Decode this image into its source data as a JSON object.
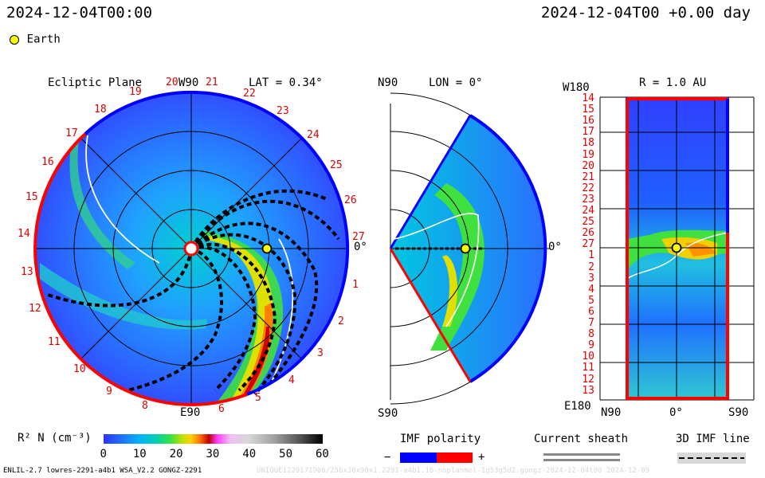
{
  "header": {
    "left_time": "2024-12-04T00:00",
    "right_time": "2024-12-04T00 +0.00 day"
  },
  "legend": {
    "earth": "Earth"
  },
  "panels": {
    "ecliptic": {
      "title": "Ecliptic Plane",
      "top_label": "W90",
      "lat": "LAT = 0.34°",
      "bottom_label": "E90",
      "right_label": "0°",
      "day_labels": [
        "1",
        "2",
        "3",
        "4",
        "5",
        "6",
        "8",
        "9",
        "10",
        "11",
        "12",
        "13",
        "14",
        "15",
        "16",
        "17",
        "18",
        "19",
        "20",
        "21",
        "22",
        "23",
        "24",
        "25",
        "26",
        "27"
      ]
    },
    "meridional": {
      "top_left": "N90",
      "title": "LON = 0°",
      "bottom_left": "S90",
      "right_label": "0°"
    },
    "map": {
      "title": "R = 1.0 AU",
      "top_left": "W180",
      "bottom_left": "E180",
      "x_labels": [
        "N90",
        "0°",
        "S90"
      ],
      "day_labels": [
        "14",
        "15",
        "16",
        "17",
        "18",
        "19",
        "20",
        "21",
        "22",
        "23",
        "24",
        "25",
        "26",
        "27",
        "1",
        "2",
        "3",
        "4",
        "5",
        "6",
        "7",
        "8",
        "9",
        "10",
        "11",
        "12",
        "13"
      ]
    }
  },
  "colorbar": {
    "label": "R² N (cm⁻³)",
    "ticks": [
      "0",
      "10",
      "20",
      "30",
      "40",
      "50",
      "60"
    ],
    "colors": [
      "#2a2aff",
      "#2060ff",
      "#00a0ff",
      "#00d0d0",
      "#00d080",
      "#40e040",
      "#c0e000",
      "#ffd000",
      "#ff8000",
      "#d00000",
      "#ff40ff",
      "#f0b0f0",
      "#d0d0d0",
      "#a0a0a0",
      "#606060",
      "#000000"
    ]
  },
  "imf": {
    "title": "IMF polarity",
    "minus": "−",
    "plus": "+",
    "neg_color": "#0000ff",
    "pos_color": "#ff0000"
  },
  "sheath": {
    "title": "Current sheath"
  },
  "imf_line": {
    "title": "3D IMF line"
  },
  "footer": {
    "left": "ENLIL-2.7 lowres-2291-a4b1 WSA_V2.2 GONGZ-2291",
    "right": "UNIQUE1229171906/256x30x90x1.2291-a4b1.16-noplanmel-1g53g5d2.gongz-2024-12-04t00 2024-12-09"
  },
  "chart_data": {
    "type": "heatmap",
    "title": "Ecliptic Plane",
    "quantity": "R² N (cm⁻³)",
    "colorbar_range": [
      0,
      60
    ],
    "earth_position": {
      "radius_au": 1.0,
      "lon_deg": 0
    },
    "meridional_lon_deg": 0,
    "map_radius_au": 1.0,
    "lat_deg": 0.34
  }
}
